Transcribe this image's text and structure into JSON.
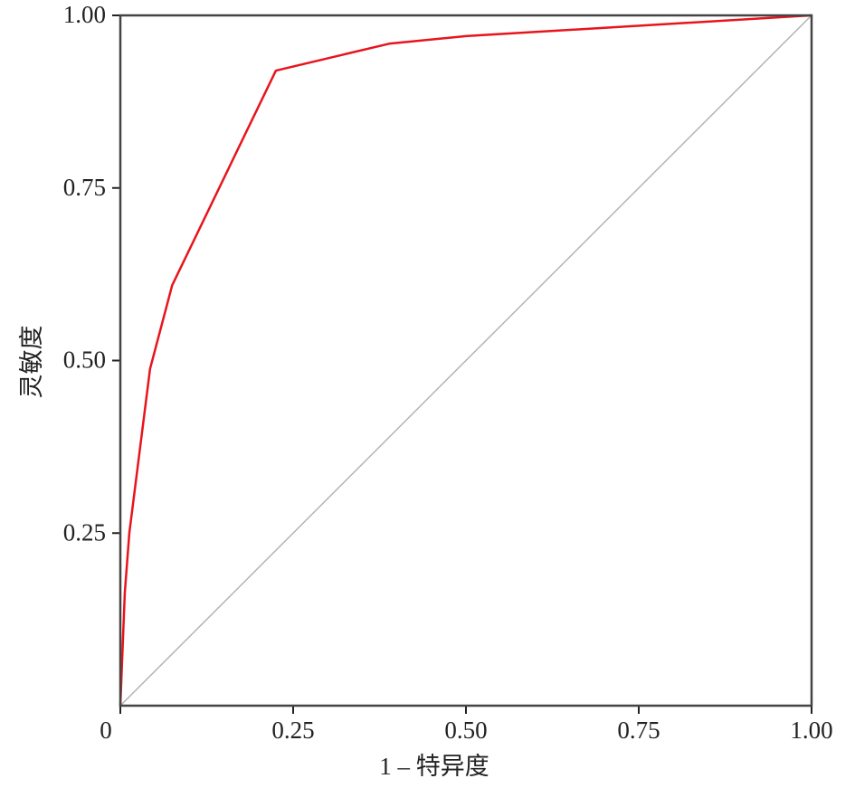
{
  "chart_data": {
    "type": "line",
    "x_label": "1 – 特异度",
    "y_label": "灵敏度",
    "x": [
      0,
      0.0065,
      0.013,
      0.043,
      0.075,
      0.225,
      0.389,
      0.5,
      1
    ],
    "series": [
      {
        "color": "#e8141c",
        "values": [
          0,
          0.164,
          0.25,
          0.488,
          0.609,
          0.92,
          0.959,
          0.97,
          1
        ]
      }
    ],
    "xlim": [
      0,
      1
    ],
    "ylim": [
      0,
      1
    ],
    "xticks": [
      0,
      0.25,
      {
        "value": 0.5,
        "label": "0.50"
      },
      0.75,
      {
        "value": 1,
        "label": "1.00"
      }
    ],
    "yticks": [
      0.25,
      {
        "value": 0.5,
        "label": "0.50"
      },
      0.75,
      {
        "value": 1,
        "label": "1.00"
      }
    ],
    "diagonal": true,
    "diagonal_color": "#b4b4b4",
    "grid": false
  }
}
